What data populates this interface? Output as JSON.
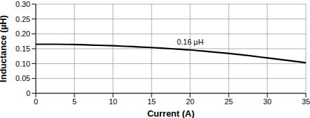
{
  "chart_data": {
    "type": "line",
    "x_label": "Current (A)",
    "y_label": "Inductance (µH)",
    "x": [
      0,
      2.5,
      5,
      7.5,
      10,
      12.5,
      15,
      17.5,
      20,
      22.5,
      25,
      27.5,
      30,
      32.5,
      35
    ],
    "series": [
      {
        "name": "Inductance",
        "color": "#000000",
        "values": [
          0.165,
          0.165,
          0.164,
          0.162,
          0.16,
          0.157,
          0.154,
          0.15,
          0.146,
          0.14,
          0.134,
          0.127,
          0.119,
          0.111,
          0.103
        ]
      }
    ],
    "xlim": [
      0,
      35
    ],
    "xticks": [
      0,
      5,
      10,
      15,
      20,
      25,
      30,
      35
    ],
    "ylim": [
      0,
      0.3
    ],
    "yticks": [
      0,
      0.05,
      {
        "value": 0.1,
        "label": "0.10"
      },
      0.15,
      {
        "value": 0.2,
        "label": "0.20"
      },
      0.25,
      {
        "value": 0.3,
        "label": "0.30"
      }
    ],
    "grid": true,
    "annotations": [
      {
        "text": "0.16 µH",
        "x": 20,
        "y": 0.152
      }
    ]
  }
}
